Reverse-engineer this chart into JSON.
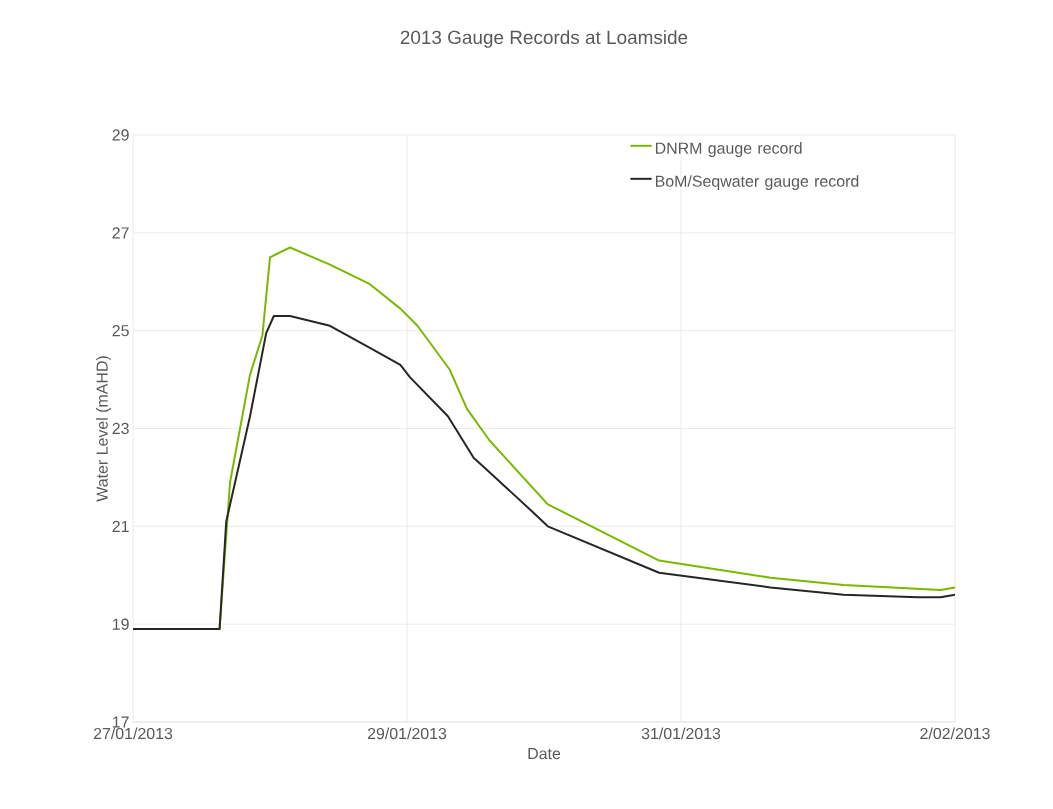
{
  "chart_data": {
    "type": "line",
    "title": "2013 Gauge Records at Loamside",
    "xlabel": "Date",
    "ylabel": "Water Level (mAHD)",
    "xlim": [
      "2013-01-27T00:00",
      "2013-02-02T00:00"
    ],
    "xticks": [
      {
        "value": "2013-01-27T00:00",
        "label": "27/01/2013"
      },
      {
        "value": "2013-01-29T00:00",
        "label": "29/01/2013"
      },
      {
        "value": "2013-01-31T00:00",
        "label": "31/01/2013"
      },
      {
        "value": "2013-02-02T00:00",
        "label": "2/02/2013"
      }
    ],
    "ylim": [
      17,
      29
    ],
    "yticks": [
      17,
      19,
      21,
      23,
      25,
      27,
      29
    ],
    "grid": true,
    "legend": "top right",
    "marker": "none",
    "line_style": "solid",
    "series": [
      {
        "name": "DNRM gauge record",
        "color": "#7ab800",
        "x": [
          "2013-01-27T00:00",
          "2013-01-27T15:10",
          "2013-01-27T17:00",
          "2013-01-27T20:30",
          "2013-01-27T22:40",
          "2013-01-28T00:00",
          "2013-01-28T03:30",
          "2013-01-28T10:30",
          "2013-01-28T17:30",
          "2013-01-28T22:50",
          "2013-01-29T01:50",
          "2013-01-29T07:30",
          "2013-01-29T10:30",
          "2013-01-29T14:30",
          "2013-01-30T00:40",
          "2013-01-30T20:10",
          "2013-01-31T15:40",
          "2013-02-01T04:30",
          "2013-02-01T21:30",
          "2013-02-02T00:00"
        ],
        "values": [
          18.9,
          18.9,
          21.9,
          24.1,
          24.9,
          26.5,
          26.7,
          26.35,
          25.95,
          25.45,
          25.1,
          24.2,
          23.4,
          22.75,
          21.45,
          20.3,
          19.95,
          19.8,
          19.7,
          19.75
        ]
      },
      {
        "name": "BoM/Seqwater gauge record",
        "color": "#262626",
        "x": [
          "2013-01-27T00:00",
          "2013-01-27T15:10",
          "2013-01-27T16:20",
          "2013-01-27T20:30",
          "2013-01-27T23:20",
          "2013-01-28T00:40",
          "2013-01-28T03:30",
          "2013-01-28T10:30",
          "2013-01-28T17:30",
          "2013-01-28T22:50",
          "2013-01-29T00:30",
          "2013-01-29T07:10",
          "2013-01-29T11:40",
          "2013-01-29T14:30",
          "2013-01-29T21:30",
          "2013-01-30T00:40",
          "2013-01-30T20:10",
          "2013-01-31T15:40",
          "2013-02-01T04:30",
          "2013-02-01T17:30",
          "2013-02-01T21:30",
          "2013-02-02T00:00"
        ],
        "values": [
          18.9,
          18.9,
          21.1,
          23.25,
          24.95,
          25.3,
          25.3,
          25.1,
          24.65,
          24.3,
          24.05,
          23.25,
          22.4,
          22.1,
          21.35,
          21.0,
          20.05,
          19.75,
          19.6,
          19.55,
          19.55,
          19.6
        ]
      }
    ]
  }
}
